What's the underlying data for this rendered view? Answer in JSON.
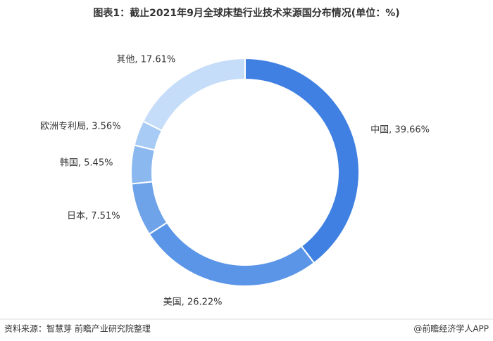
{
  "chart_data": {
    "type": "pie",
    "donut": true,
    "title": "图表1：截止2021年9月全球床垫行业技术来源国分布情况(单位：%)",
    "values": [
      39.66,
      26.22,
      7.51,
      5.45,
      3.56,
      17.61
    ],
    "value_labels": [
      "中国, 39.66%",
      "美国, 26.22%",
      "日本, 7.51%",
      "韩国, 5.45%",
      "欧洲专利局, 3.56%",
      "其他, 17.61%"
    ],
    "colors": [
      "#3f80e2",
      "#5a95e8",
      "#6ea3ea",
      "#8cb8f0",
      "#a8cbf5",
      "#c6ddf9"
    ]
  },
  "footer": {
    "source": "资料来源：智慧芽 前瞻产业研究院整理",
    "brand": "@前瞻经济学人APP"
  }
}
